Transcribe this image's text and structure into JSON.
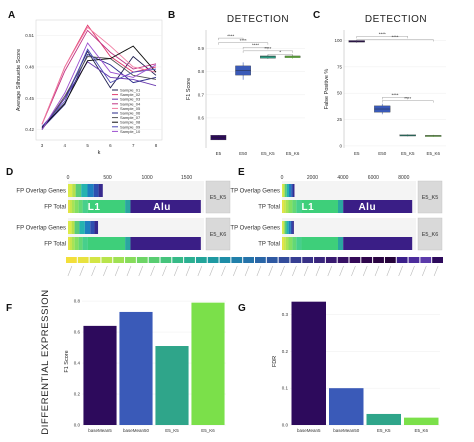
{
  "panels": {
    "A": "A",
    "B": "B",
    "C": "C",
    "D": "D",
    "E": "E",
    "F": "F",
    "G": "G"
  },
  "side_label": "DIFFERENTIAL EXPRESSION",
  "colors": {
    "e5": "#2d0a5c",
    "e50": "#3a5ab8",
    "k5": "#2fa58a",
    "k6": "#7be04a",
    "grey": "#d9d9d9"
  },
  "chart_data": [
    {
      "panel": "A",
      "type": "line",
      "xlabel": "k",
      "ylabel": "Average Silhouette Score",
      "x": [
        3,
        4,
        5,
        6,
        7,
        8
      ],
      "ylim": [
        0.41,
        0.525
      ],
      "yticks": [
        0.42,
        0.45,
        0.48,
        0.51
      ],
      "xticks": [
        3,
        4,
        5,
        6,
        7,
        8
      ],
      "legend_title": "",
      "series": [
        {
          "name": "Sample_01",
          "color": "#1d1d4f",
          "values": [
            0.422,
            0.45,
            0.495,
            0.46,
            0.49,
            0.472
          ]
        },
        {
          "name": "Sample_02",
          "color": "#e03b6e",
          "values": [
            0.425,
            0.48,
            0.52,
            0.49,
            0.475,
            0.48
          ]
        },
        {
          "name": "Sample_03",
          "color": "#6a3ab0",
          "values": [
            0.42,
            0.45,
            0.485,
            0.47,
            0.468,
            0.462
          ]
        },
        {
          "name": "Sample_04",
          "color": "#c03585",
          "values": [
            0.425,
            0.476,
            0.515,
            0.494,
            0.478,
            0.483
          ]
        },
        {
          "name": "Sample_05",
          "color": "#f07aa0",
          "values": [
            0.425,
            0.48,
            0.518,
            0.5,
            0.48,
            0.475
          ]
        },
        {
          "name": "Sample_06",
          "color": "#2a2a8a",
          "values": [
            0.421,
            0.444,
            0.492,
            0.482,
            0.465,
            0.47
          ]
        },
        {
          "name": "Sample_07",
          "color": "#555555",
          "values": [
            0.42,
            0.452,
            0.49,
            0.488,
            0.472,
            0.468
          ]
        },
        {
          "name": "Sample_08",
          "color": "#0d0d0d",
          "values": [
            0.422,
            0.445,
            0.486,
            0.488,
            0.5,
            0.475
          ]
        },
        {
          "name": "Sample_09",
          "color": "#4b49b5",
          "values": [
            0.423,
            0.447,
            0.497,
            0.465,
            0.475,
            0.478
          ]
        },
        {
          "name": "Sample_10",
          "color": "#9b4fd0",
          "values": [
            0.42,
            0.455,
            0.503,
            0.475,
            0.47,
            0.482
          ]
        }
      ]
    },
    {
      "panel": "B",
      "type": "box",
      "title": "DETECTION",
      "ylabel": "F1 Score",
      "categories": [
        "E5",
        "E50",
        "E5_K5",
        "E5_K6"
      ],
      "ylim": [
        0.47,
        0.98
      ],
      "yticks": [
        0.6,
        0.7,
        0.8,
        0.9
      ],
      "boxes": [
        {
          "q1": 0.505,
          "median": 0.515,
          "q3": 0.525,
          "lo": 0.505,
          "hi": 0.525
        },
        {
          "q1": 0.785,
          "median": 0.805,
          "q3": 0.825,
          "lo": 0.765,
          "hi": 0.84
        },
        {
          "q1": 0.858,
          "median": 0.864,
          "q3": 0.868,
          "lo": 0.855,
          "hi": 0.872
        },
        {
          "q1": 0.86,
          "median": 0.864,
          "q3": 0.868,
          "lo": 0.856,
          "hi": 0.872
        }
      ],
      "brackets": [
        {
          "from": 0,
          "to": 1,
          "label": "****",
          "y": 0.945
        },
        {
          "from": 0,
          "to": 2,
          "label": "****",
          "y": 0.925
        },
        {
          "from": 1,
          "to": 2,
          "label": "****",
          "y": 0.905
        },
        {
          "from": 1,
          "to": 3,
          "label": "****",
          "y": 0.89
        },
        {
          "from": 2,
          "to": 3,
          "label": "*",
          "y": 0.875
        }
      ]
    },
    {
      "panel": "C",
      "type": "box",
      "title": "DETECTION",
      "ylabel": "False Positive %",
      "categories": [
        "E5",
        "E50",
        "E5_K5",
        "E5_K6"
      ],
      "ylim": [
        -2,
        110
      ],
      "yticks": [
        0,
        25,
        50,
        75,
        100
      ],
      "boxes": [
        {
          "q1": 98.5,
          "median": 99.3,
          "q3": 100,
          "lo": 98,
          "hi": 100.5
        },
        {
          "q1": 32,
          "median": 35,
          "q3": 38,
          "lo": 30,
          "hi": 40
        },
        {
          "q1": 9.5,
          "median": 10,
          "q3": 10.5,
          "lo": 9,
          "hi": 11
        },
        {
          "q1": 9,
          "median": 9.5,
          "q3": 10,
          "lo": 8.5,
          "hi": 10.5
        }
      ],
      "brackets": [
        {
          "from": 0,
          "to": 2,
          "label": "****",
          "y": 104
        },
        {
          "from": 0,
          "to": 3,
          "label": "****",
          "y": 101
        },
        {
          "from": 1,
          "to": 2,
          "label": "****",
          "y": 46
        },
        {
          "from": 1,
          "to": 3,
          "label": "****",
          "y": 43
        }
      ]
    },
    {
      "panel": "D",
      "type": "stacked_bar",
      "xticks": [
        0,
        500,
        1000,
        1500
      ],
      "xmax": 1720,
      "facets": [
        "E5_K5",
        "E5_K6"
      ],
      "rows": [
        "FP Overlap Genes",
        "FP Total"
      ],
      "bars": [
        {
          "facet": "E5_K5",
          "row": "FP Overlap Genes",
          "total": 440
        },
        {
          "facet": "E5_K5",
          "row": "FP Total",
          "total": 1680
        },
        {
          "facet": "E5_K6",
          "row": "FP Overlap Genes",
          "total": 380
        },
        {
          "facet": "E5_K6",
          "row": "FP Total",
          "total": 1680
        }
      ],
      "segment_labels": [
        {
          "text": "L1",
          "facet": "E5_K5",
          "row": "FP Total",
          "at": 330
        },
        {
          "text": "Alu",
          "facet": "E5_K5",
          "row": "FP Total",
          "at": 1190
        }
      ],
      "legend": [
        "",
        "",
        "",
        "",
        "",
        "",
        "",
        "",
        "",
        "",
        "",
        "",
        "",
        "",
        "",
        "",
        "",
        "",
        "",
        "",
        "",
        "",
        "",
        "",
        "",
        "",
        "",
        "",
        "",
        "",
        "",
        ""
      ]
    },
    {
      "panel": "E",
      "type": "stacked_bar",
      "xticks": [
        0,
        2000,
        4000,
        6000,
        8000
      ],
      "xmax": 8800,
      "facets": [
        "E5_K5",
        "E5_K6"
      ],
      "rows": [
        "TP Overlap Genes",
        "TP Total"
      ],
      "bars": [
        {
          "facet": "E5_K5",
          "row": "TP Overlap Genes",
          "total": 820
        },
        {
          "facet": "E5_K5",
          "row": "TP Total",
          "total": 8550
        },
        {
          "facet": "E5_K6",
          "row": "TP Overlap Genes",
          "total": 780
        },
        {
          "facet": "E5_K6",
          "row": "TP Total",
          "total": 8550
        }
      ],
      "segment_labels": [
        {
          "text": "L1",
          "facet": "E5_K5",
          "row": "TP Total",
          "at": 1700
        },
        {
          "text": "Alu",
          "facet": "E5_K5",
          "row": "TP Total",
          "at": 5600
        }
      ]
    },
    {
      "panel": "F",
      "type": "bar",
      "ylabel": "F1 Score",
      "categories": [
        "baseMean5",
        "baseMean50",
        "E5_K5",
        "E5_K6"
      ],
      "values": [
        0.64,
        0.73,
        0.51,
        0.79
      ],
      "ylim": [
        0,
        0.82
      ],
      "yticks": [
        0,
        0.2,
        0.4,
        0.6,
        0.8
      ]
    },
    {
      "panel": "G",
      "type": "bar",
      "ylabel": "FDR",
      "categories": [
        "baseMean5",
        "baseMean50",
        "E5_K5",
        "E5_K6"
      ],
      "values": [
        0.335,
        0.1,
        0.03,
        0.02
      ],
      "ylim": [
        0,
        0.345
      ],
      "yticks": [
        0,
        0.1,
        0.2,
        0.3
      ]
    }
  ]
}
